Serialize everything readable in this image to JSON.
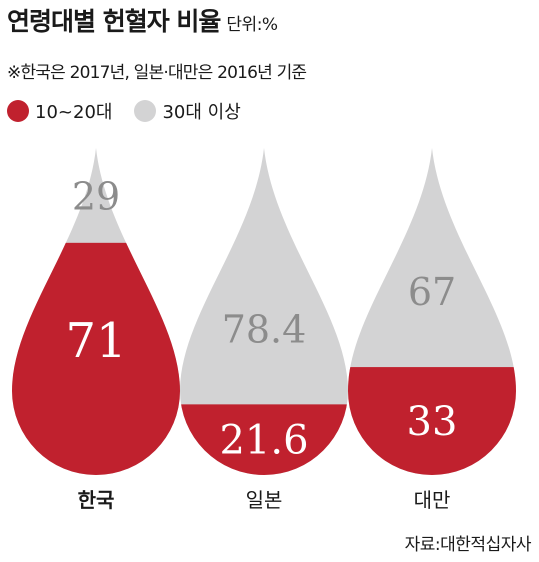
{
  "header": {
    "title": "연령대별 헌혈자 비율",
    "unit": "단위:%",
    "note": "※한국은 2017년, 일본·대만은 2016년 기준"
  },
  "colors": {
    "young": "#c0212e",
    "older": "#d3d3d4",
    "older_label": "#8c8c8c",
    "young_label": "#ffffff"
  },
  "chart_data": {
    "type": "bar",
    "categories": [
      "한국",
      "일본",
      "대만"
    ],
    "series": [
      {
        "name": "10~20대",
        "values": [
          71,
          21.6,
          33
        ]
      },
      {
        "name": "30대 이상",
        "values": [
          29,
          78.4,
          67
        ]
      }
    ],
    "value_labels": {
      "young": [
        "71",
        "21.6",
        "33"
      ],
      "older": [
        "29",
        "78.4",
        "67"
      ]
    },
    "highlight_category": "한국"
  },
  "source": "자료:대한적십자사"
}
